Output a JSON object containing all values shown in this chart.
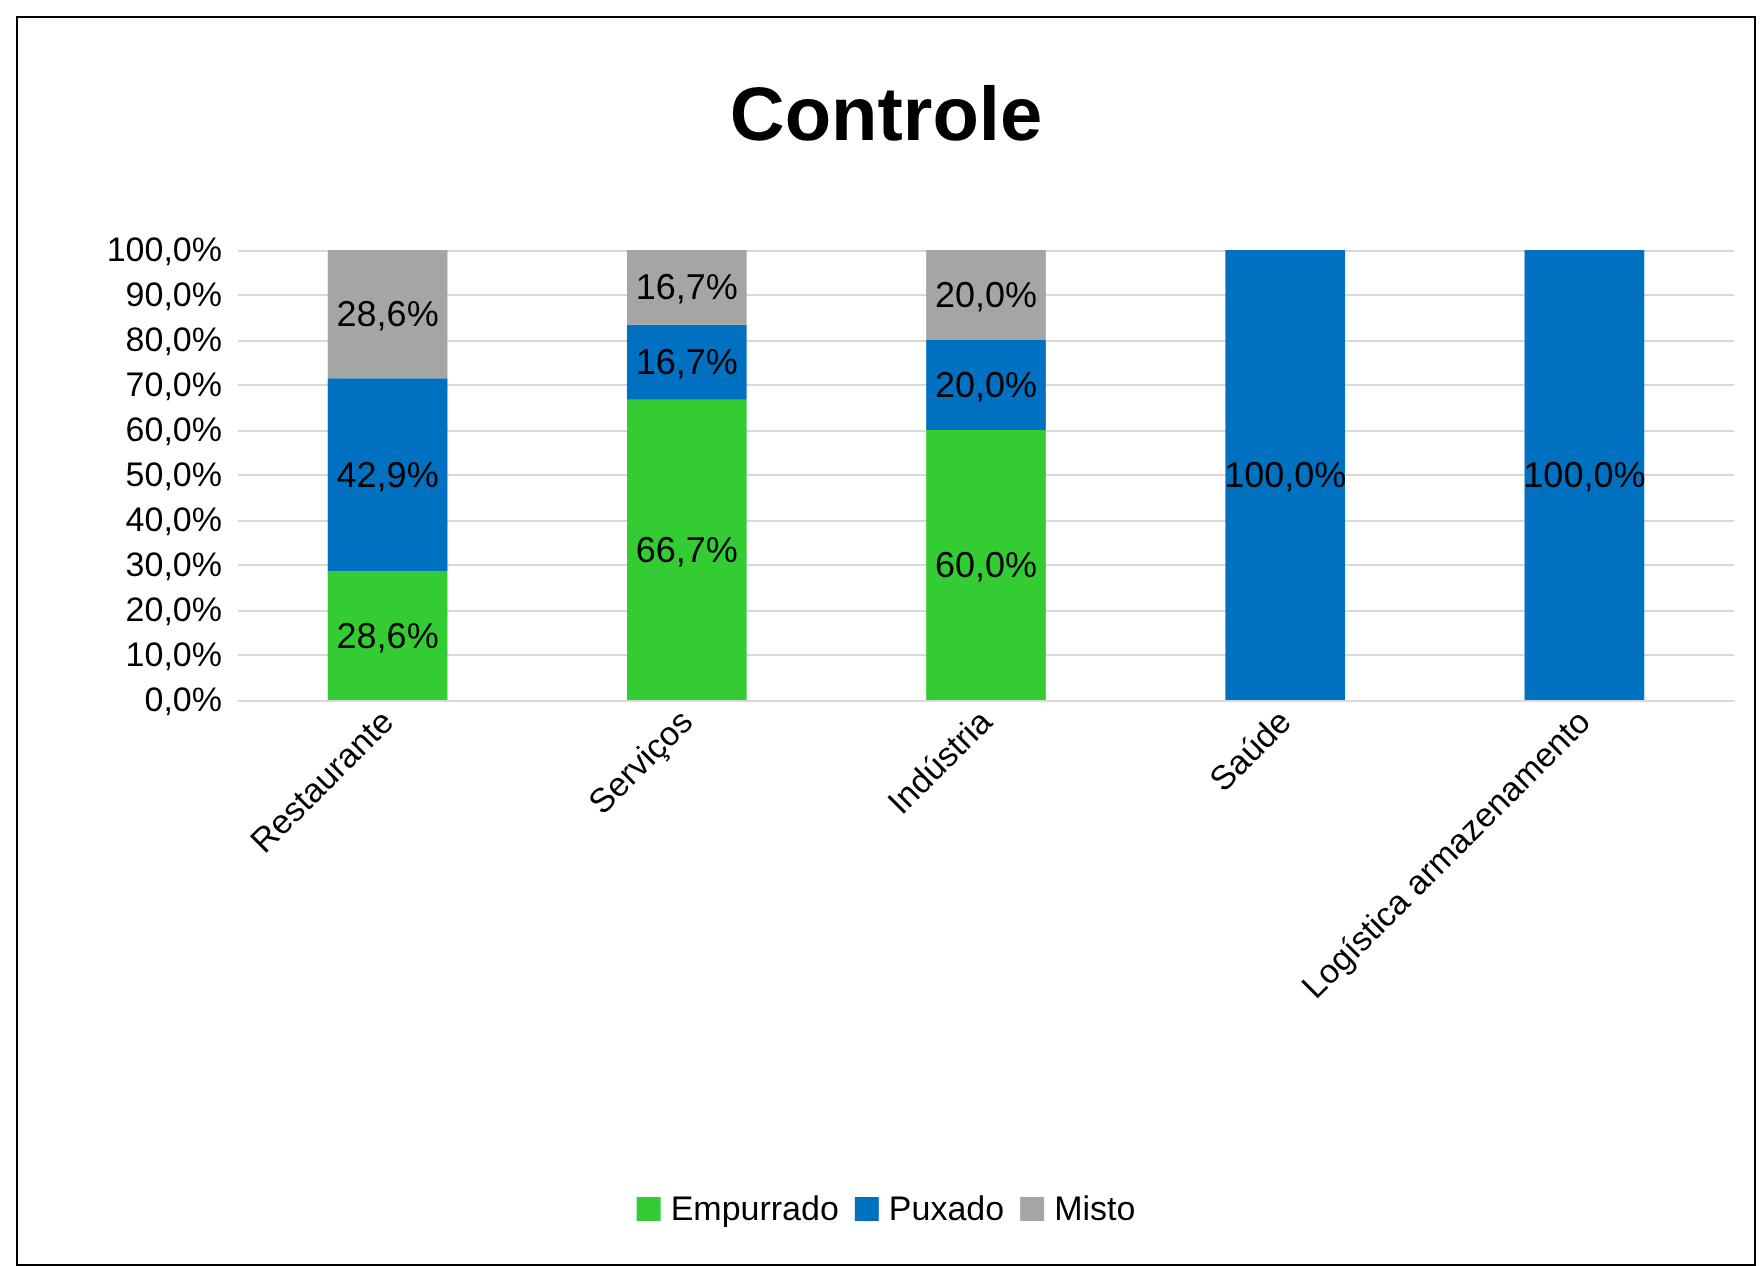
{
  "chart_data": {
    "type": "bar",
    "title": "Controle",
    "stacked": true,
    "categories": [
      "Restaurante",
      "Serviços",
      "Indústria",
      "Saúde",
      "Logística armazenamento"
    ],
    "series": [
      {
        "name": "Empurrado",
        "color": "#33cc33",
        "values": [
          28.6,
          66.7,
          60.0,
          0,
          0
        ],
        "value_labels": [
          "28,6%",
          "66,7%",
          "60,0%",
          null,
          null
        ]
      },
      {
        "name": "Puxado",
        "color": "#0070c0",
        "values": [
          42.9,
          16.7,
          20.0,
          100,
          100
        ],
        "value_labels": [
          "42,9%",
          "16,7%",
          "20,0%",
          "100,0%",
          "100,0%"
        ]
      },
      {
        "name": "Misto",
        "color": "#a5a5a5",
        "values": [
          28.6,
          16.7,
          20.0,
          0,
          0
        ],
        "value_labels": [
          "28,6%",
          "16,7%",
          "20,0%",
          null,
          null
        ]
      }
    ],
    "ylim": [
      0,
      100
    ],
    "yticks": [
      {
        "value": 0,
        "label": "0,0%"
      },
      {
        "value": 10,
        "label": "10,0%"
      },
      {
        "value": 20,
        "label": "20,0%"
      },
      {
        "value": 30,
        "label": "30,0%"
      },
      {
        "value": 40,
        "label": "40,0%"
      },
      {
        "value": 50,
        "label": "50,0%"
      },
      {
        "value": 60,
        "label": "60,0%"
      },
      {
        "value": 70,
        "label": "70,0%"
      },
      {
        "value": 80,
        "label": "80,0%"
      },
      {
        "value": 90,
        "label": "90,0%"
      },
      {
        "value": 100,
        "label": "100,0%"
      }
    ],
    "grid": "y",
    "legend": "bottom"
  }
}
